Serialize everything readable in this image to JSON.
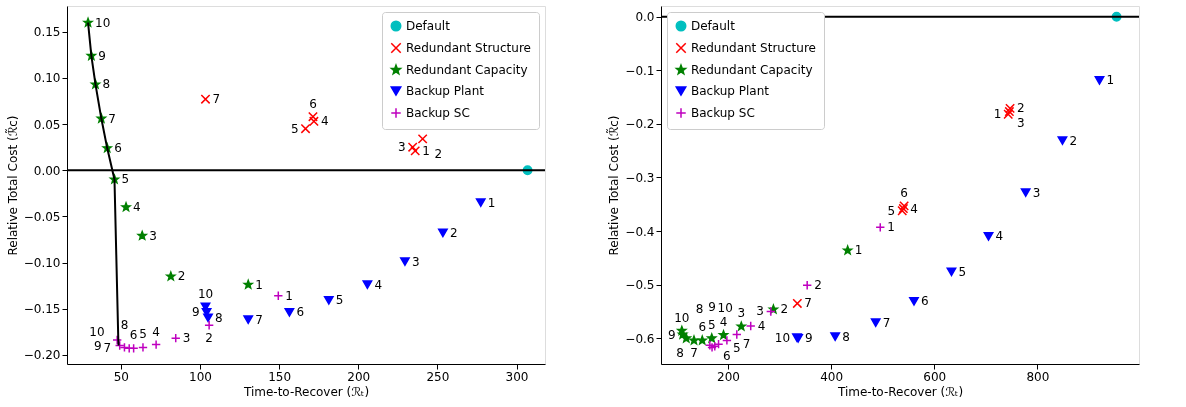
{
  "chart_data": [
    {
      "type": "scatter",
      "xlabel": "Time-to-Recover (ℛₜ)",
      "ylabel": "Relative Total Cost (ℛ̃c)",
      "xlim": [
        16,
        318
      ],
      "ylim": [
        -0.21,
        0.178
      ],
      "xticks": [
        50,
        100,
        150,
        200,
        250,
        300
      ],
      "yticks": [
        {
          "value": -0.2,
          "label": "−0.20"
        },
        {
          "value": -0.15,
          "label": "−0.15"
        },
        {
          "value": -0.1,
          "label": "−0.10"
        },
        {
          "value": -0.05,
          "label": "−0.05"
        },
        {
          "value": 0,
          "label": "0.00"
        },
        {
          "value": 0.05,
          "label": "0.05"
        },
        {
          "value": 0.1,
          "label": "0.10"
        },
        {
          "value": 0.15,
          "label": "0.15"
        }
      ],
      "legend": "top right",
      "ref_lines": [
        {
          "axis": "y",
          "value": 0,
          "color": "#000000"
        }
      ],
      "series": [
        {
          "type": "line",
          "color": "#000000",
          "marker": "none",
          "x": [
            29.3,
            31.4,
            34.0,
            37.7,
            41.4,
            46.0,
            48.4,
            48.6
          ],
          "values": [
            0.16,
            0.124,
            0.093,
            0.056,
            0.024,
            -0.01,
            -0.183,
            -0.19
          ]
        },
        {
          "name": "Default",
          "color": "#00bfbf",
          "marker": "circle",
          "x": [
            307
          ],
          "values": [
            0
          ]
        },
        {
          "name": "Redundant Structure",
          "color": "#ff0000",
          "marker": "cross",
          "x": [
            236,
            240.7,
            234.4,
            172,
            166.7,
            171.4,
            103.5
          ],
          "values": [
            0.021,
            0.034,
            0.025,
            0.053,
            0.045,
            0.058,
            0.077
          ]
        },
        {
          "name": "Redundant Capacity",
          "color": "#008000",
          "marker": "star",
          "x": [
            130.5,
            81.6,
            63.5,
            53.3,
            46.0,
            41.4,
            37.7,
            34.0,
            31.4,
            29.3
          ],
          "values": [
            -0.124,
            -0.115,
            -0.071,
            -0.04,
            -0.01,
            0.024,
            0.056,
            0.093,
            0.124,
            0.16
          ]
        },
        {
          "name": "Backup Plant",
          "color": "#0000ff",
          "marker": "triangle",
          "x": [
            277.4,
            253.5,
            229.5,
            205.8,
            181.4,
            156.5,
            130.5,
            105.1,
            104.2,
            103.5
          ],
          "values": [
            -0.035,
            -0.068,
            -0.099,
            -0.124,
            -0.141,
            -0.154,
            -0.162,
            -0.16,
            -0.154,
            -0.148
          ]
        },
        {
          "name": "Backup SC",
          "color": "#bf00bf",
          "marker": "plus",
          "x": [
            149.5,
            105.8,
            84.7,
            72.3,
            64.0,
            58.1,
            55.3,
            52.3,
            49.3,
            47.7
          ],
          "values": [
            -0.136,
            -0.168,
            -0.182,
            -0.189,
            -0.192,
            -0.193,
            -0.193,
            -0.192,
            -0.19,
            -0.184
          ]
        }
      ],
      "annotations": [
        {
          "text": "1",
          "x": 236,
          "y": 0.021
        },
        {
          "text": "2",
          "x": 240.7,
          "y": 0.034
        },
        {
          "text": "3",
          "x": 234.4,
          "y": 0.025
        },
        {
          "text": "4",
          "x": 172,
          "y": 0.053
        },
        {
          "text": "5",
          "x": 166.7,
          "y": 0.045
        },
        {
          "text": "6",
          "x": 171.4,
          "y": 0.058
        },
        {
          "text": "7",
          "x": 103.5,
          "y": 0.077
        },
        {
          "text": "1",
          "x": 130.5,
          "y": -0.124
        },
        {
          "text": "2",
          "x": 81.6,
          "y": -0.115
        },
        {
          "text": "3",
          "x": 63.5,
          "y": -0.071
        },
        {
          "text": "4",
          "x": 53.3,
          "y": -0.04
        },
        {
          "text": "5",
          "x": 46.0,
          "y": -0.01
        },
        {
          "text": "6",
          "x": 41.4,
          "y": 0.024
        },
        {
          "text": "7",
          "x": 37.7,
          "y": 0.056
        },
        {
          "text": "8",
          "x": 34.0,
          "y": 0.093
        },
        {
          "text": "9",
          "x": 31.4,
          "y": 0.124
        },
        {
          "text": "10",
          "x": 29.3,
          "y": 0.16
        },
        {
          "text": "1",
          "x": 277.4,
          "y": -0.035
        },
        {
          "text": "2",
          "x": 253.5,
          "y": -0.068
        },
        {
          "text": "3",
          "x": 229.5,
          "y": -0.099
        },
        {
          "text": "4",
          "x": 205.8,
          "y": -0.124
        },
        {
          "text": "5",
          "x": 181.4,
          "y": -0.141
        },
        {
          "text": "6",
          "x": 156.5,
          "y": -0.154
        },
        {
          "text": "7",
          "x": 130.5,
          "y": -0.162
        },
        {
          "text": "8",
          "x": 105.1,
          "y": -0.16
        },
        {
          "text": "9",
          "x": 104.2,
          "y": -0.154
        },
        {
          "text": "10",
          "x": 103.5,
          "y": -0.148
        },
        {
          "text": "1",
          "x": 149.5,
          "y": -0.136
        },
        {
          "text": "2",
          "x": 105.8,
          "y": -0.168
        },
        {
          "text": "3",
          "x": 84.7,
          "y": -0.182
        },
        {
          "text": "4",
          "x": 72.3,
          "y": -0.189
        },
        {
          "text": "5",
          "x": 64.0,
          "y": -0.192
        },
        {
          "text": "6",
          "x": 58.1,
          "y": -0.193
        },
        {
          "text": "7",
          "x": 55.3,
          "y": -0.193
        },
        {
          "text": "8",
          "x": 52.3,
          "y": -0.192
        },
        {
          "text": "9",
          "x": 49.3,
          "y": -0.19
        },
        {
          "text": "10",
          "x": 47.7,
          "y": -0.184
        }
      ]
    },
    {
      "type": "scatter",
      "xlabel": "Time-to-Recover (ℛₜ)",
      "ylabel": "Relative Total Cost (ℛ̃c)",
      "xlim": [
        70,
        997
      ],
      "ylim": [
        -0.648,
        0.02
      ],
      "xticks": [
        200,
        400,
        600,
        800
      ],
      "yticks": [
        {
          "value": -0.6,
          "label": "−0.6"
        },
        {
          "value": -0.5,
          "label": "−0.5"
        },
        {
          "value": -0.4,
          "label": "−0.4"
        },
        {
          "value": -0.3,
          "label": "−0.3"
        },
        {
          "value": -0.2,
          "label": "−0.2"
        },
        {
          "value": -0.1,
          "label": "−0.1"
        },
        {
          "value": 0,
          "label": "0.0"
        }
      ],
      "legend": "top left",
      "ref_lines": [
        {
          "axis": "y",
          "value": 0,
          "color": "#000000"
        }
      ],
      "series": [
        {
          "name": "Default",
          "color": "#00bfbf",
          "marker": "circle",
          "x": [
            953.5
          ],
          "values": [
            0
          ]
        },
        {
          "name": "Redundant Structure",
          "color": "#ff0000",
          "marker": "cross",
          "x": [
            743.4,
            747,
            745.6,
            540,
            537.8,
            541.5,
            334.4
          ],
          "values": [
            -0.182,
            -0.171,
            -0.177,
            -0.358,
            -0.362,
            -0.353,
            -0.535
          ]
        },
        {
          "name": "Redundant Capacity",
          "color": "#008000",
          "marker": "star",
          "x": [
            432,
            288,
            225.7,
            191.2,
            168.4,
            150,
            134,
            119,
            112,
            110.4
          ],
          "values": [
            -0.436,
            -0.546,
            -0.578,
            -0.594,
            -0.6,
            -0.604,
            -0.604,
            -0.6,
            -0.593,
            -0.586
          ]
        },
        {
          "name": "Backup Plant",
          "color": "#0000ff",
          "marker": "triangle",
          "x": [
            920.4,
            848.5,
            777.2,
            705.2,
            633.3,
            560.6,
            486.4,
            407.8,
            335.9,
            333.7
          ],
          "values": [
            -0.119,
            -0.231,
            -0.328,
            -0.41,
            -0.476,
            -0.531,
            -0.571,
            -0.597,
            -0.6,
            -0.599
          ]
        },
        {
          "name": "Backup SC",
          "color": "#bf00bf",
          "marker": "plus",
          "x": [
            495.2,
            353.5,
            283,
            244,
            217,
            197.8,
            181.6,
            174.3,
            169,
            164.7
          ],
          "values": [
            -0.393,
            -0.501,
            -0.55,
            -0.577,
            -0.593,
            -0.604,
            -0.611,
            -0.615,
            -0.617,
            -0.613
          ]
        }
      ],
      "annotations": [
        {
          "text": "1",
          "x": 743.4,
          "y": -0.182
        },
        {
          "text": "2",
          "x": 747,
          "y": -0.171
        },
        {
          "text": "3",
          "x": 745.6,
          "y": -0.177
        },
        {
          "text": "4",
          "x": 540,
          "y": -0.358
        },
        {
          "text": "5",
          "x": 537.8,
          "y": -0.362
        },
        {
          "text": "6",
          "x": 541.5,
          "y": -0.353
        },
        {
          "text": "7",
          "x": 334.4,
          "y": -0.535
        },
        {
          "text": "1",
          "x": 432,
          "y": -0.436
        },
        {
          "text": "2",
          "x": 288,
          "y": -0.546
        },
        {
          "text": "3",
          "x": 225.7,
          "y": -0.578
        },
        {
          "text": "4",
          "x": 191.2,
          "y": -0.594
        },
        {
          "text": "5",
          "x": 168.4,
          "y": -0.6
        },
        {
          "text": "6",
          "x": 150,
          "y": -0.604
        },
        {
          "text": "7",
          "x": 134,
          "y": -0.604
        },
        {
          "text": "8",
          "x": 119,
          "y": -0.6
        },
        {
          "text": "9",
          "x": 112,
          "y": -0.593
        },
        {
          "text": "10",
          "x": 110.4,
          "y": -0.586
        },
        {
          "text": "1",
          "x": 920.4,
          "y": -0.119
        },
        {
          "text": "2",
          "x": 848.5,
          "y": -0.231
        },
        {
          "text": "3",
          "x": 777.2,
          "y": -0.328
        },
        {
          "text": "4",
          "x": 705.2,
          "y": -0.41
        },
        {
          "text": "5",
          "x": 633.3,
          "y": -0.476
        },
        {
          "text": "6",
          "x": 560.6,
          "y": -0.531
        },
        {
          "text": "7",
          "x": 486.4,
          "y": -0.571
        },
        {
          "text": "8",
          "x": 407.8,
          "y": -0.597
        },
        {
          "text": "9",
          "x": 335.9,
          "y": -0.6
        },
        {
          "text": "10",
          "x": 333.7,
          "y": -0.599
        },
        {
          "text": "1",
          "x": 495.2,
          "y": -0.393
        },
        {
          "text": "2",
          "x": 353.5,
          "y": -0.501
        },
        {
          "text": "3",
          "x": 283,
          "y": -0.55
        },
        {
          "text": "4",
          "x": 244,
          "y": -0.577
        },
        {
          "text": "5",
          "x": 217,
          "y": -0.593
        },
        {
          "text": "6",
          "x": 197.8,
          "y": -0.604
        },
        {
          "text": "7",
          "x": 181.6,
          "y": -0.611
        },
        {
          "text": "8",
          "x": 174.3,
          "y": -0.615
        },
        {
          "text": "9",
          "x": 169,
          "y": -0.617
        },
        {
          "text": "10",
          "x": 164.7,
          "y": -0.613
        }
      ]
    }
  ]
}
